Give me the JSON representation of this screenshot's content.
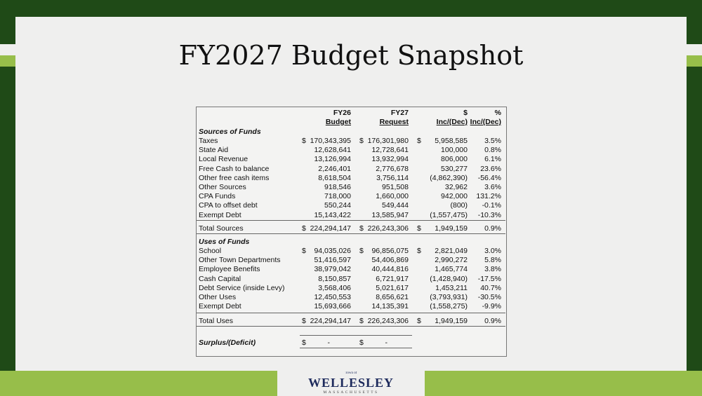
{
  "title": "FY2027 Budget Snapshot",
  "colors": {
    "frame": "#1f4a17",
    "accent": "#97be4a",
    "slide": "#efefee"
  },
  "table": {
    "headers": {
      "fy26_top": "FY26",
      "fy26_bottom": "Budget",
      "fy27_top": "FY27",
      "fy27_bottom": "Request",
      "dollar_top": "$",
      "dollar_bottom": "Inc/(Dec)",
      "pct_top": "%",
      "pct_bottom": "Inc/(Dec)"
    },
    "sources_label": "Sources of Funds",
    "sources": [
      {
        "label": "Taxes",
        "d": "$",
        "fy26": "170,343,395",
        "fy27": "176,301,980",
        "inc": "5,958,585",
        "pct": "3.5%"
      },
      {
        "label": "State Aid",
        "fy26": "12,628,641",
        "fy27": "12,728,641",
        "inc": "100,000",
        "pct": "0.8%"
      },
      {
        "label": "Local Revenue",
        "fy26": "13,126,994",
        "fy27": "13,932,994",
        "inc": "806,000",
        "pct": "6.1%"
      },
      {
        "label": "Free Cash to balance",
        "fy26": "2,246,401",
        "fy27": "2,776,678",
        "inc": "530,277",
        "pct": "23.6%"
      },
      {
        "label": "Other free cash items",
        "fy26": "8,618,504",
        "fy27": "3,756,114",
        "inc": "(4,862,390)",
        "pct": "-56.4%"
      },
      {
        "label": "Other Sources",
        "fy26": "918,546",
        "fy27": "951,508",
        "inc": "32,962",
        "pct": "3.6%"
      },
      {
        "label": "CPA Funds",
        "fy26": "718,000",
        "fy27": "1,660,000",
        "inc": "942,000",
        "pct": "131.2%"
      },
      {
        "label": "CPA to offset debt",
        "fy26": "550,244",
        "fy27": "549,444",
        "inc": "(800)",
        "pct": "-0.1%"
      },
      {
        "label": "Exempt Debt",
        "fy26": "15,143,422",
        "fy27": "13,585,947",
        "inc": "(1,557,475)",
        "pct": "-10.3%"
      }
    ],
    "total_sources": {
      "label": "Total Sources",
      "d": "$",
      "fy26": "224,294,147",
      "fy27": "226,243,306",
      "inc": "1,949,159",
      "pct": "0.9%"
    },
    "uses_label": "Uses of Funds",
    "uses": [
      {
        "label": "School",
        "d": "$",
        "fy26": "94,035,026",
        "fy27": "96,856,075",
        "inc": "2,821,049",
        "pct": "3.0%"
      },
      {
        "label": "Other Town Departments",
        "fy26": "51,416,597",
        "fy27": "54,406,869",
        "inc": "2,990,272",
        "pct": "5.8%"
      },
      {
        "label": "Employee Benefits",
        "fy26": "38,979,042",
        "fy27": "40,444,816",
        "inc": "1,465,774",
        "pct": "3.8%"
      },
      {
        "label": "Cash Capital",
        "fy26": "8,150,857",
        "fy27": "6,721,917",
        "inc": "(1,428,940)",
        "pct": "-17.5%"
      },
      {
        "label": "Debt Service (inside Levy)",
        "fy26": "3,568,406",
        "fy27": "5,021,617",
        "inc": "1,453,211",
        "pct": "40.7%"
      },
      {
        "label": "Other Uses",
        "fy26": "12,450,553",
        "fy27": "8,656,621",
        "inc": "(3,793,931)",
        "pct": "-30.5%"
      },
      {
        "label": "Exempt Debt",
        "fy26": "15,693,666",
        "fy27": "14,135,391",
        "inc": "(1,558,275)",
        "pct": "-9.9%"
      }
    ],
    "total_uses": {
      "label": "Total Uses",
      "d": "$",
      "fy26": "224,294,147",
      "fy27": "226,243,306",
      "inc": "1,949,159",
      "pct": "0.9%"
    },
    "surplus": {
      "label": "Surplus/(Deficit)",
      "d": "$",
      "fy26": "-",
      "fy27": "-"
    }
  },
  "logo": {
    "top": "Town of",
    "name": "WELLESLEY",
    "sub": "MASSACHUSETTS"
  }
}
